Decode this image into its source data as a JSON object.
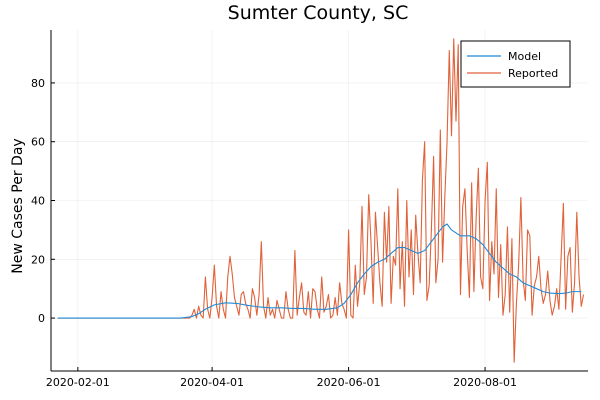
{
  "chart_data": {
    "type": "line",
    "title": "Sumter County, SC",
    "ylabel": "New Cases Per Day",
    "xlabel": "",
    "x_start_date": "2020-01-23",
    "x_tick_labels": [
      "2020-02-01",
      "2020-04-01",
      "2020-06-01",
      "2020-08-01"
    ],
    "x_tick_dates": [
      "2020-02-01",
      "2020-04-01",
      "2020-06-01",
      "2020-08-01"
    ],
    "y_ticks": [
      0,
      20,
      40,
      60,
      80
    ],
    "xlim": [
      "2020-01-20",
      "2020-09-16"
    ],
    "ylim": [
      -18,
      98
    ],
    "grid": true,
    "legend_position": "top-right",
    "series": [
      {
        "name": "Model",
        "color": "#1f8bd6",
        "points": [
          [
            0,
            0
          ],
          [
            55,
            0
          ],
          [
            60,
            0.5
          ],
          [
            63,
            1.5
          ],
          [
            66,
            3
          ],
          [
            70,
            4.5
          ],
          [
            75,
            5.2
          ],
          [
            80,
            5
          ],
          [
            85,
            4.3
          ],
          [
            90,
            3.8
          ],
          [
            95,
            3.5
          ],
          [
            100,
            3.5
          ],
          [
            105,
            3.3
          ],
          [
            110,
            3.3
          ],
          [
            115,
            3
          ],
          [
            120,
            3
          ],
          [
            125,
            3.5
          ],
          [
            128,
            5
          ],
          [
            131,
            8
          ],
          [
            134,
            12
          ],
          [
            137,
            15
          ],
          [
            140,
            17.5
          ],
          [
            143,
            19
          ],
          [
            146,
            20
          ],
          [
            149,
            22
          ],
          [
            152,
            24
          ],
          [
            155,
            24
          ],
          [
            158,
            23
          ],
          [
            161,
            22
          ],
          [
            164,
            23
          ],
          [
            167,
            26
          ],
          [
            170,
            29
          ],
          [
            172,
            31
          ],
          [
            174,
            32
          ],
          [
            176,
            30
          ],
          [
            180,
            28
          ],
          [
            184,
            28
          ],
          [
            187,
            27
          ],
          [
            190,
            25
          ],
          [
            193,
            22
          ],
          [
            196,
            19
          ],
          [
            199,
            17
          ],
          [
            202,
            15
          ],
          [
            205,
            14
          ],
          [
            208,
            12
          ],
          [
            211,
            11
          ],
          [
            214,
            10
          ],
          [
            217,
            9
          ],
          [
            220,
            8.5
          ],
          [
            224,
            8.3
          ],
          [
            227,
            8.5
          ],
          [
            230,
            9
          ],
          [
            234,
            9
          ]
        ]
      },
      {
        "name": "Reported",
        "color": "#e0623a",
        "values": [
          0,
          0,
          0,
          0,
          0,
          0,
          0,
          0,
          0,
          0,
          0,
          0,
          0,
          0,
          0,
          0,
          0,
          0,
          0,
          0,
          0,
          0,
          0,
          0,
          0,
          0,
          0,
          0,
          0,
          0,
          0,
          0,
          0,
          0,
          0,
          0,
          0,
          0,
          0,
          0,
          0,
          0,
          0,
          0,
          0,
          0,
          0,
          0,
          0,
          0,
          0,
          0,
          0,
          0,
          0,
          0,
          0,
          0,
          0,
          0,
          1,
          3,
          0,
          4,
          1,
          0,
          14,
          3,
          0,
          7,
          18,
          4,
          0,
          9,
          3,
          0,
          14,
          21,
          15,
          7,
          4,
          1,
          8,
          9,
          5,
          3,
          0,
          10,
          7,
          1,
          8,
          26,
          4,
          0,
          7,
          1,
          3,
          0,
          6,
          3,
          0,
          0,
          9,
          3,
          0,
          0,
          23,
          1,
          7,
          12,
          2,
          1,
          9,
          0,
          10,
          9,
          3,
          0,
          14,
          2,
          4,
          8,
          0,
          1,
          7,
          1,
          12,
          5,
          3,
          0,
          30,
          1,
          0,
          18,
          4,
          12,
          38,
          8,
          14,
          42,
          26,
          5,
          36,
          24,
          12,
          4,
          36,
          19,
          38,
          5,
          21,
          18,
          44,
          10,
          26,
          4,
          40,
          14,
          30,
          8,
          35,
          22,
          12,
          47,
          60,
          6,
          11,
          30,
          55,
          12,
          20,
          64,
          19,
          41,
          60,
          91,
          62,
          95,
          67,
          93,
          8,
          38,
          44,
          23,
          7,
          46,
          9,
          34,
          51,
          14,
          10,
          40,
          53,
          6,
          26,
          15,
          44,
          7,
          25,
          1,
          8,
          31,
          2,
          27,
          -15,
          5,
          18,
          41,
          13,
          6,
          30,
          28,
          1,
          11,
          14,
          21,
          10,
          5,
          8,
          16,
          6,
          1,
          4,
          10,
          3,
          21,
          39,
          3,
          21,
          24,
          2,
          12,
          36,
          14,
          4,
          8
        ]
      }
    ]
  }
}
